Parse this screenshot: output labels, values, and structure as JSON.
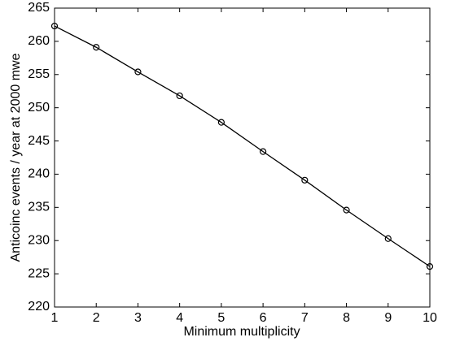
{
  "chart_data": {
    "type": "line",
    "x_label": "Minimum multiplicity",
    "y_label": "Anticoinc events / year at 2000 mwe",
    "x": [
      1,
      2,
      3,
      4,
      5,
      6,
      7,
      8,
      9,
      10
    ],
    "series": [
      {
        "color": "#000000",
        "marker": "circle",
        "values": [
          262.3,
          259.1,
          255.4,
          251.8,
          247.8,
          243.4,
          239.1,
          234.6,
          230.3,
          226.1
        ]
      }
    ],
    "xlim": [
      1,
      10
    ],
    "xticks": [
      1,
      2,
      3,
      4,
      5,
      6,
      7,
      8,
      9,
      10
    ],
    "ylim": [
      220,
      265
    ],
    "yticks": [
      220,
      225,
      230,
      235,
      240,
      245,
      250,
      255,
      260,
      265
    ],
    "grid": false
  }
}
